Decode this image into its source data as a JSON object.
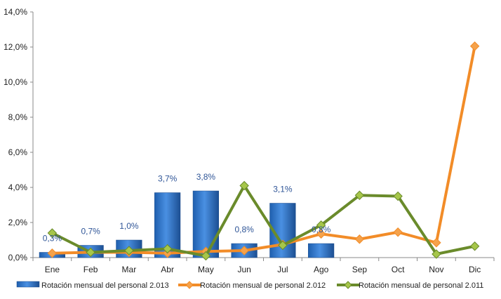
{
  "chart_data": {
    "type": "bar",
    "categories": [
      "Ene",
      "Feb",
      "Mar",
      "Abr",
      "May",
      "Jun",
      "Jul",
      "Ago",
      "Sep",
      "Oct",
      "Nov",
      "Dic"
    ],
    "y_tick_labels": [
      "0,0%",
      "2,0%",
      "4,0%",
      "6,0%",
      "8,0%",
      "10,0%",
      "12,0%",
      "14,0%"
    ],
    "ylim": [
      0,
      14
    ],
    "grid": false,
    "legend_position": "bottom",
    "series": [
      {
        "name": "Rotación mensual del personal 2.013",
        "type": "bar",
        "color": "#2e75c8",
        "values": [
          0.3,
          0.7,
          1.0,
          3.7,
          3.8,
          0.8,
          3.1,
          0.8,
          null,
          null,
          null,
          null
        ],
        "data_labels": [
          "0,3%",
          "0,7%",
          "1,0%",
          "3,7%",
          "3,8%",
          "0,8%",
          "3,1%",
          "0,8%",
          "",
          "",
          "",
          ""
        ]
      },
      {
        "name": "Rotación mensual de personal 2.012",
        "type": "line",
        "color": "#f28c28",
        "marker_color": "#f5a24b",
        "values": [
          0.25,
          0.3,
          0.3,
          0.25,
          0.35,
          0.4,
          0.75,
          1.35,
          1.05,
          1.45,
          0.85,
          12.05
        ]
      },
      {
        "name": "Rotación mensual de personal 2.011",
        "type": "line",
        "color": "#6a8b2b",
        "marker_color": "#a6c64a",
        "values": [
          1.4,
          0.3,
          0.4,
          0.5,
          0.1,
          4.1,
          0.7,
          1.85,
          3.55,
          3.5,
          0.2,
          0.65
        ]
      }
    ]
  }
}
